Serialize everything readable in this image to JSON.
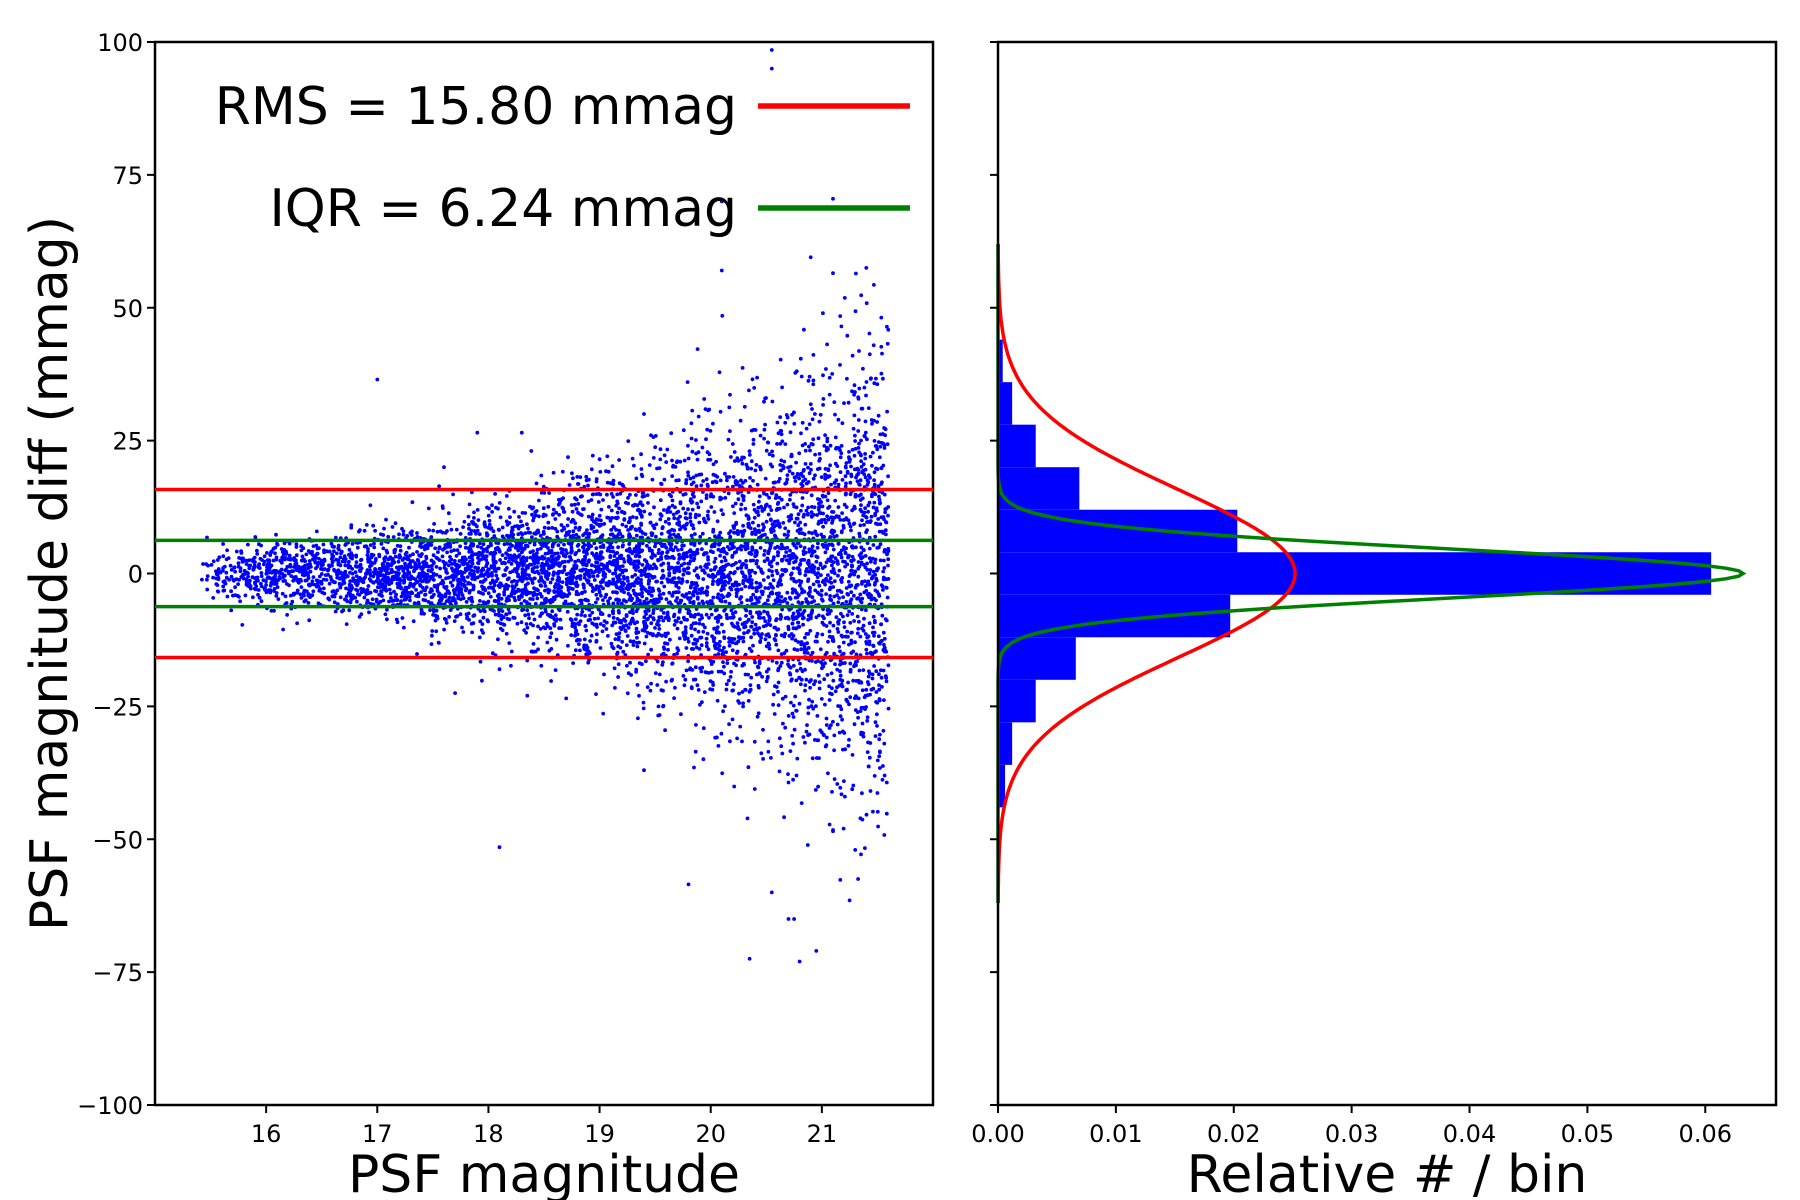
{
  "chart_data": [
    {
      "type": "scatter",
      "name": "scatter-panel",
      "xlabel": "PSF magnitude",
      "ylabel": "PSF magnitude diff (mmag)",
      "xlim": [
        15.0,
        22.0
      ],
      "ylim": [
        -100,
        100
      ],
      "xticks": [
        16,
        17,
        18,
        19,
        20,
        21
      ],
      "xtick_labels": [
        "16",
        "17",
        "18",
        "19",
        "20",
        "21"
      ],
      "yticks": [
        -100,
        -75,
        -50,
        -25,
        0,
        25,
        50,
        75,
        100
      ],
      "ytick_labels": [
        "−100",
        "−75",
        "−50",
        "−25",
        "0",
        "25",
        "50",
        "75",
        "100"
      ],
      "points_color": "#0000ff",
      "scatter_model": {
        "mag_range": [
          15.4,
          21.6
        ],
        "n_points": 6000,
        "scatter_sigma_at_16": 3.0,
        "scatter_sigma_at_21_5": 21.0,
        "note": "dense point cloud; spread widens with magnitude"
      },
      "outliers": [
        {
          "x": 20.55,
          "y": 98.5
        },
        {
          "x": 20.55,
          "y": 95.0
        },
        {
          "x": 20.1,
          "y": 70.0
        },
        {
          "x": 21.1,
          "y": 70.5
        },
        {
          "x": 20.9,
          "y": 59.5
        },
        {
          "x": 21.1,
          "y": 56.5
        },
        {
          "x": 21.4,
          "y": 57.5
        },
        {
          "x": 20.1,
          "y": 57.0
        },
        {
          "x": 17.0,
          "y": 36.5
        },
        {
          "x": 17.9,
          "y": 26.5
        },
        {
          "x": 18.3,
          "y": 26.5
        },
        {
          "x": 19.4,
          "y": 30.0
        },
        {
          "x": 19.0,
          "y": 21.5
        },
        {
          "x": 17.6,
          "y": 20.0
        },
        {
          "x": 17.7,
          "y": -22.5
        },
        {
          "x": 18.1,
          "y": -18.0
        },
        {
          "x": 18.35,
          "y": -23.0
        },
        {
          "x": 18.7,
          "y": -23.5
        },
        {
          "x": 19.4,
          "y": -37.0
        },
        {
          "x": 19.85,
          "y": -36.5
        },
        {
          "x": 18.1,
          "y": -51.5
        },
        {
          "x": 19.8,
          "y": -58.5
        },
        {
          "x": 20.55,
          "y": -60.0
        },
        {
          "x": 20.7,
          "y": -65.0
        },
        {
          "x": 20.75,
          "y": -65.0
        },
        {
          "x": 21.25,
          "y": -61.5
        },
        {
          "x": 20.35,
          "y": -72.5
        },
        {
          "x": 20.8,
          "y": -73.0
        },
        {
          "x": 20.95,
          "y": -71.0
        },
        {
          "x": 21.1,
          "y": -48.5
        },
        {
          "x": 21.3,
          "y": -52.0
        }
      ],
      "hlines": [
        {
          "y": 15.8,
          "color": "#ff0000",
          "label": "RMS"
        },
        {
          "y": -15.8,
          "color": "#ff0000",
          "label": "RMS"
        },
        {
          "y": 6.24,
          "color": "#008000",
          "label": "IQR"
        },
        {
          "y": -6.24,
          "color": "#008000",
          "label": "IQR"
        }
      ],
      "legend": [
        {
          "text": "RMS = 15.80 mmag",
          "color": "#ff0000"
        },
        {
          "text": "IQR = 6.24 mmag",
          "color": "#008000"
        }
      ],
      "legend_position": "top"
    },
    {
      "type": "histogram",
      "name": "histogram-panel",
      "orientation": "horizontal",
      "xlabel": "Relative # / bin",
      "ylabel": "",
      "xlim": [
        0.0,
        0.066
      ],
      "ylim": [
        -100,
        100
      ],
      "xticks": [
        0.0,
        0.01,
        0.02,
        0.03,
        0.04,
        0.05,
        0.06
      ],
      "xtick_labels": [
        "0.00",
        "0.01",
        "0.02",
        "0.03",
        "0.04",
        "0.05",
        "0.06"
      ],
      "yticks": [
        -100,
        -75,
        -50,
        -25,
        0,
        25,
        50,
        75,
        100
      ],
      "bar_color": "#0000ff",
      "bins": [
        {
          "y0": -44,
          "y1": -36,
          "value": 0.0006
        },
        {
          "y0": -36,
          "y1": -28,
          "value": 0.0012
        },
        {
          "y0": -28,
          "y1": -20,
          "value": 0.0032
        },
        {
          "y0": -20,
          "y1": -12,
          "value": 0.0066
        },
        {
          "y0": -12,
          "y1": -4,
          "value": 0.0197
        },
        {
          "y0": -4,
          "y1": 4,
          "value": 0.0605
        },
        {
          "y0": 4,
          "y1": 12,
          "value": 0.0203
        },
        {
          "y0": 12,
          "y1": 20,
          "value": 0.0069
        },
        {
          "y0": 20,
          "y1": 28,
          "value": 0.0032
        },
        {
          "y0": 28,
          "y1": 36,
          "value": 0.0012
        },
        {
          "y0": 36,
          "y1": 44,
          "value": 0.0004
        }
      ],
      "curves": [
        {
          "name": "RMS gaussian",
          "color": "#ff0000",
          "sigma": 15.8,
          "peak": 0.0252
        },
        {
          "name": "IQR gaussian",
          "color": "#008000",
          "sigma": 4.62,
          "peak": 0.0632
        }
      ]
    }
  ]
}
